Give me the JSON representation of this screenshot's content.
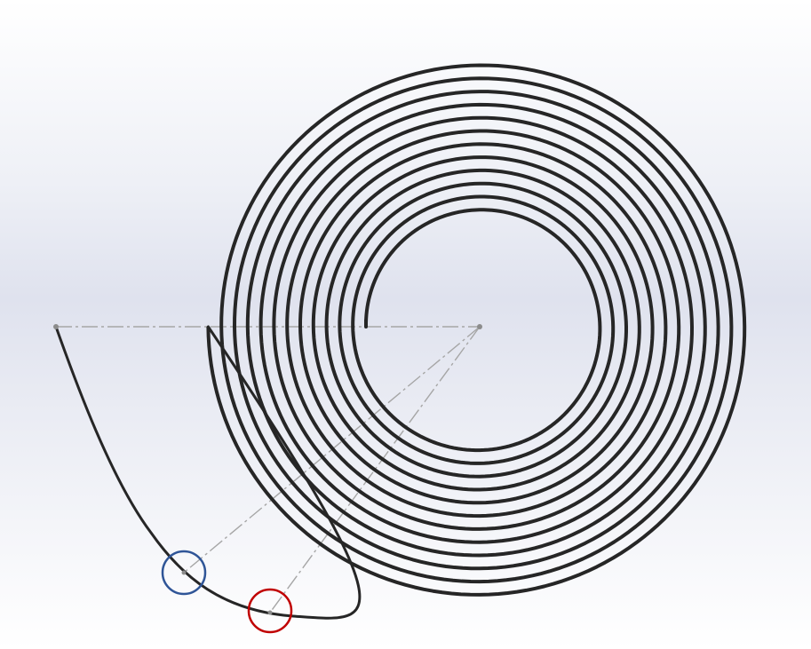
{
  "viewport": {
    "background_top": "#ffffff",
    "background_mid": "#dfe2ee",
    "background_bottom": "#ffffff"
  },
  "sketch": {
    "spiral_color": "#262626",
    "spiral_turns": 12,
    "tangent_curve_color": "#262626",
    "construction_line_color": "#a6a6a6",
    "sketch_point_color": "#8c8c8c"
  },
  "highlights": [
    {
      "name": "blue-circle-marker",
      "color": "#2f5597"
    },
    {
      "name": "red-circle-marker",
      "color": "#c00000"
    }
  ]
}
